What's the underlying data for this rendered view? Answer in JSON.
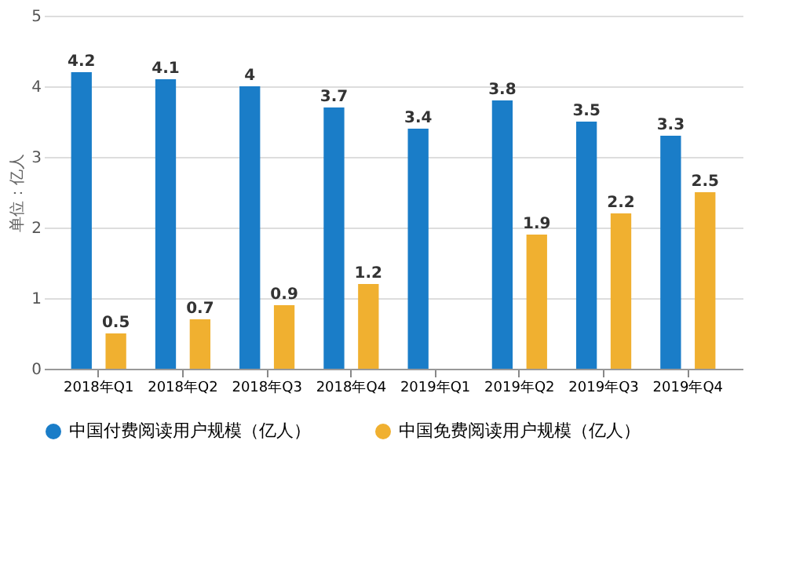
{
  "chart_data": {
    "type": "bar",
    "ylabel": "单位：亿人",
    "categories": [
      "2018年Q1",
      "2018年Q2",
      "2018年Q3",
      "2018年Q4",
      "2019年Q1",
      "2019年Q2",
      "2019年Q3",
      "2019年Q4"
    ],
    "series": [
      {
        "name": "中国付费阅读用户规模（亿人）",
        "color": "#1a7dc8",
        "values": [
          4.2,
          4.1,
          4,
          3.7,
          3.4,
          3.8,
          3.5,
          3.3
        ],
        "value_labels": [
          "4.2",
          "4.1",
          "4",
          "3.7",
          "3.4",
          "3.8",
          "3.5",
          "3.3"
        ]
      },
      {
        "name": "中国免费阅读用户规模（亿人）",
        "color": "#f0b030",
        "values": [
          0.5,
          0.7,
          0.9,
          1.2,
          null,
          1.9,
          2.2,
          2.5
        ],
        "value_labels": [
          "0.5",
          "0.7",
          "0.9",
          "1.2",
          null,
          "1.9",
          "2.2",
          "2.5"
        ]
      }
    ],
    "ylim": [
      0,
      5
    ],
    "yticks": [
      0,
      1,
      2,
      3,
      4,
      5
    ],
    "grid": "y",
    "legend": "bottom"
  }
}
